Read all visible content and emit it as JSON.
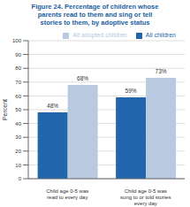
{
  "chart_data": {
    "type": "bar",
    "title": "Figure 24. Percentage of children whose\nparents read to them and sing or tell\nstories to them, by adoptive status",
    "categories": [
      "Child age 0-5 was\nread to every day",
      "Child age 0-5 was\nsung to or told stories\nevery day"
    ],
    "series": [
      {
        "name": "All children",
        "color": "#2166ac",
        "values": [
          48,
          59
        ],
        "value_labels": [
          "48%",
          "59%"
        ]
      },
      {
        "name": "All adopted children",
        "color": "#b8c9e0",
        "values": [
          68,
          73
        ],
        "value_labels": [
          "68%",
          "73%"
        ]
      }
    ],
    "ylabel": "Percent",
    "ylim": [
      0,
      100
    ],
    "yticks": [
      0,
      10,
      20,
      30,
      40,
      50,
      60,
      70,
      80,
      90,
      100
    ],
    "grid": true,
    "legend": "upper right",
    "data_labels": true
  }
}
